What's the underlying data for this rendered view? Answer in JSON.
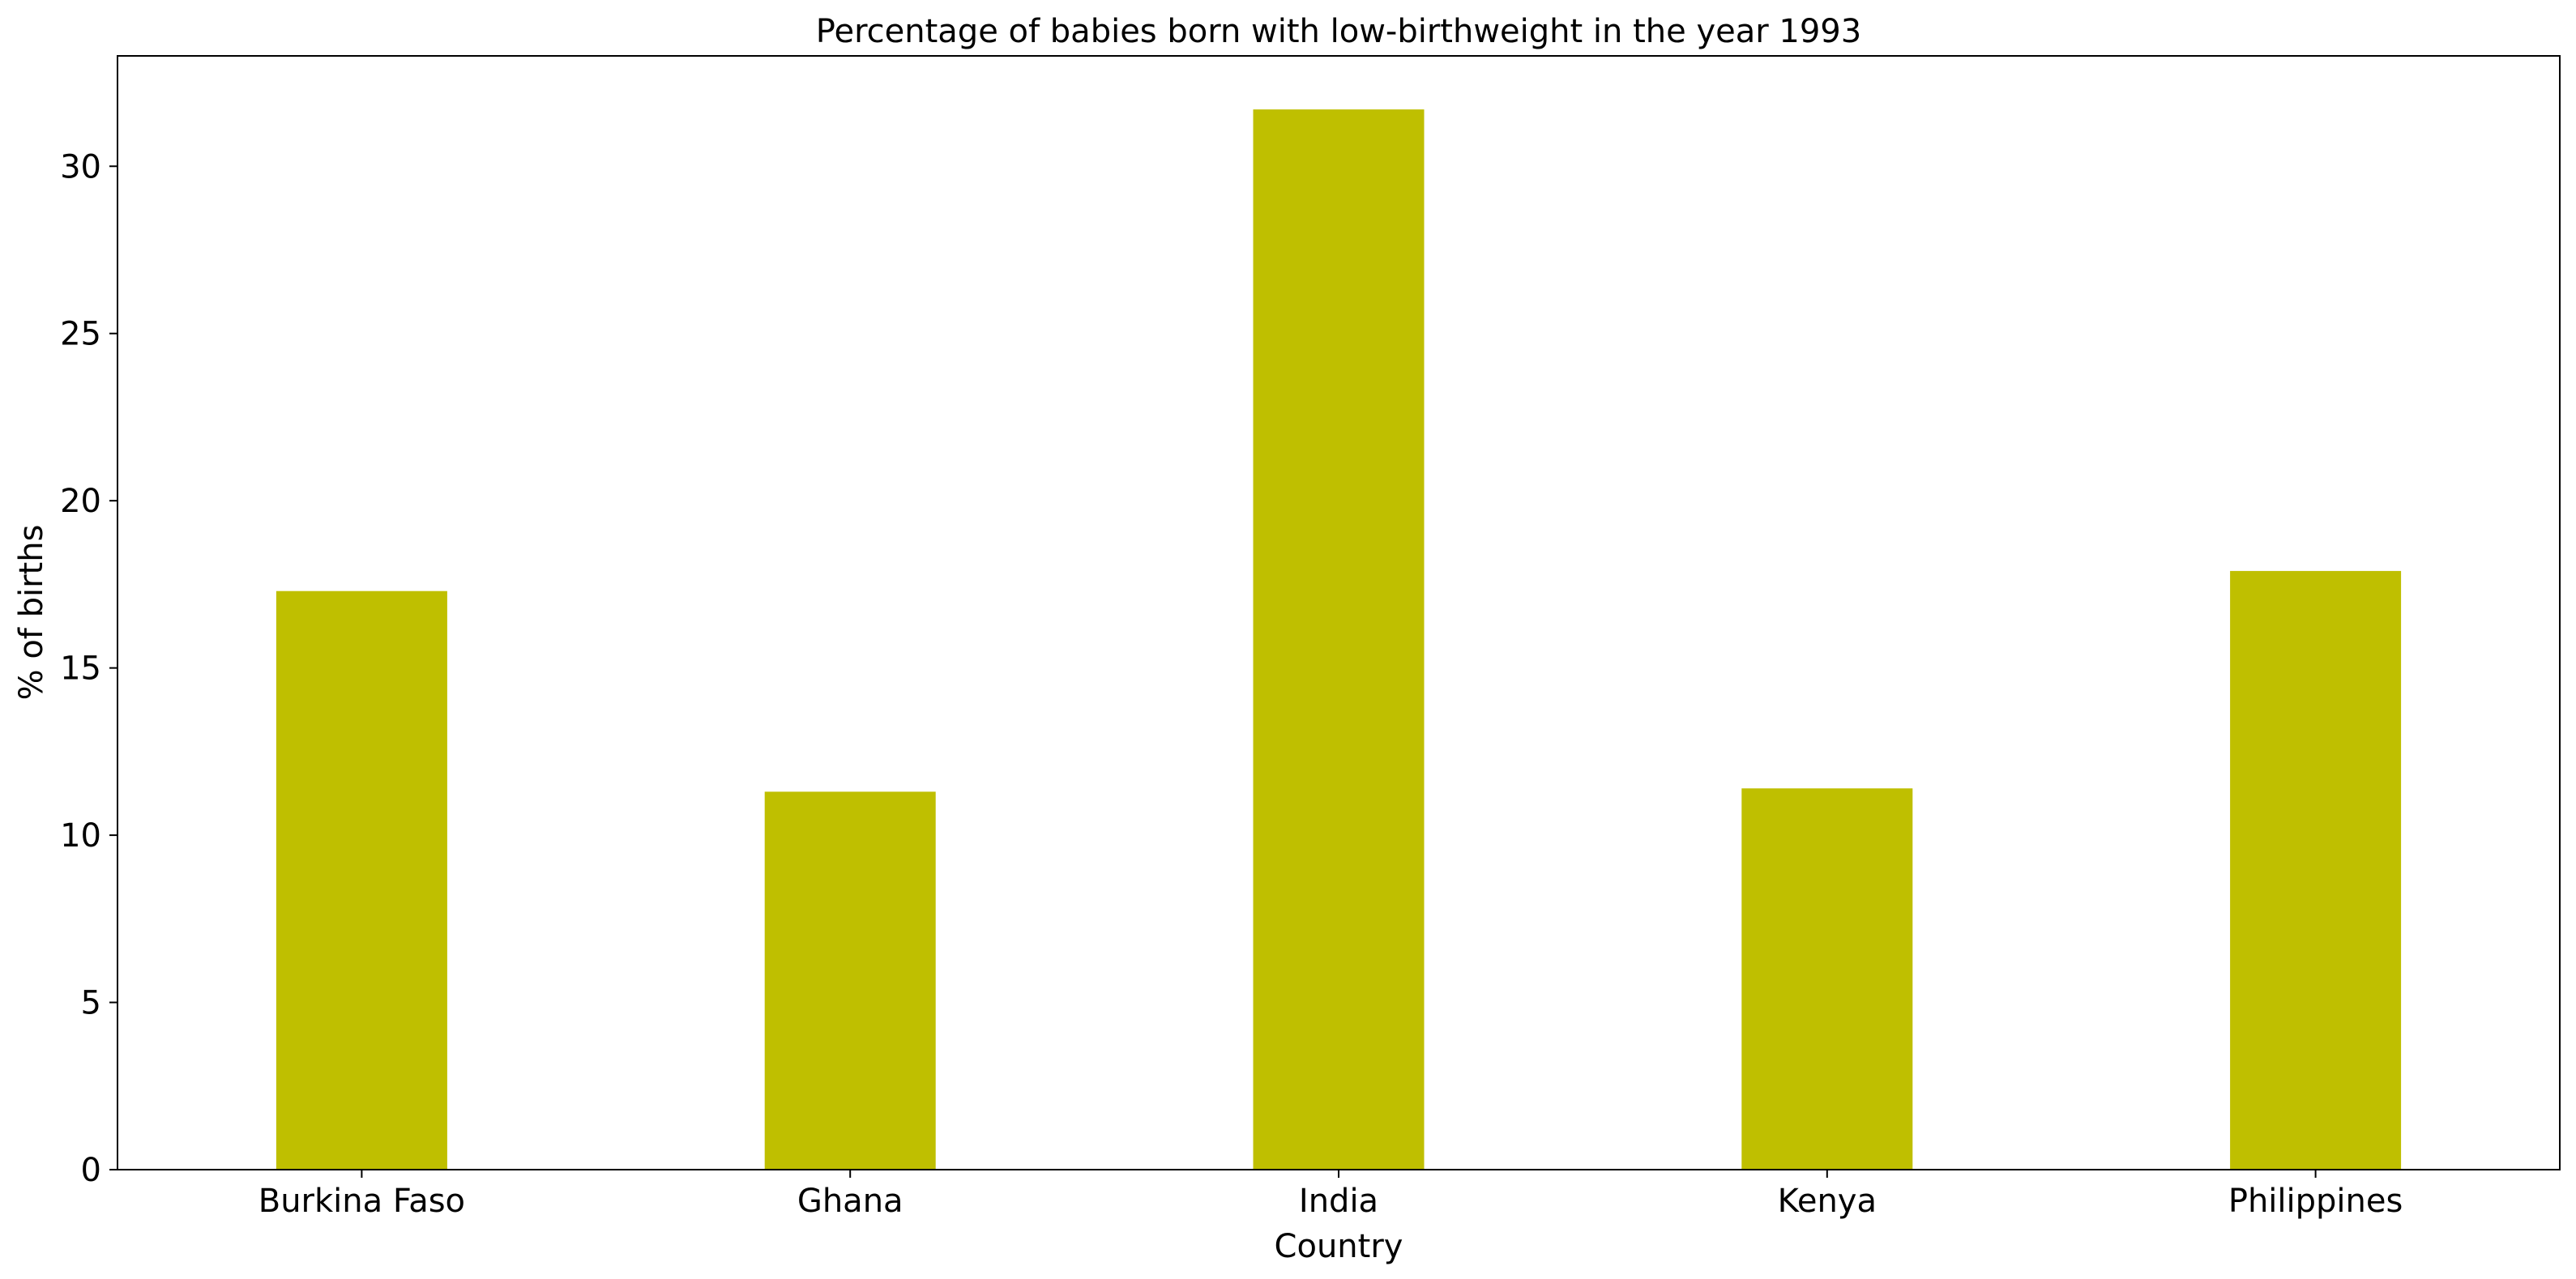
{
  "chart_data": {
    "type": "bar",
    "title": "Percentage of babies born with low-birthweight in the year 1993",
    "xlabel": "Country",
    "ylabel": "% of births",
    "categories": [
      "Burkina Faso",
      "Ghana",
      "India",
      "Kenya",
      "Philippines"
    ],
    "values": [
      17.3,
      11.3,
      31.7,
      11.4,
      17.9
    ],
    "ylim": [
      0,
      33.3
    ],
    "yticks": [
      0,
      5,
      10,
      15,
      20,
      25,
      30
    ],
    "bar_color": "#bfbf00",
    "grid": false,
    "legend": "none"
  }
}
